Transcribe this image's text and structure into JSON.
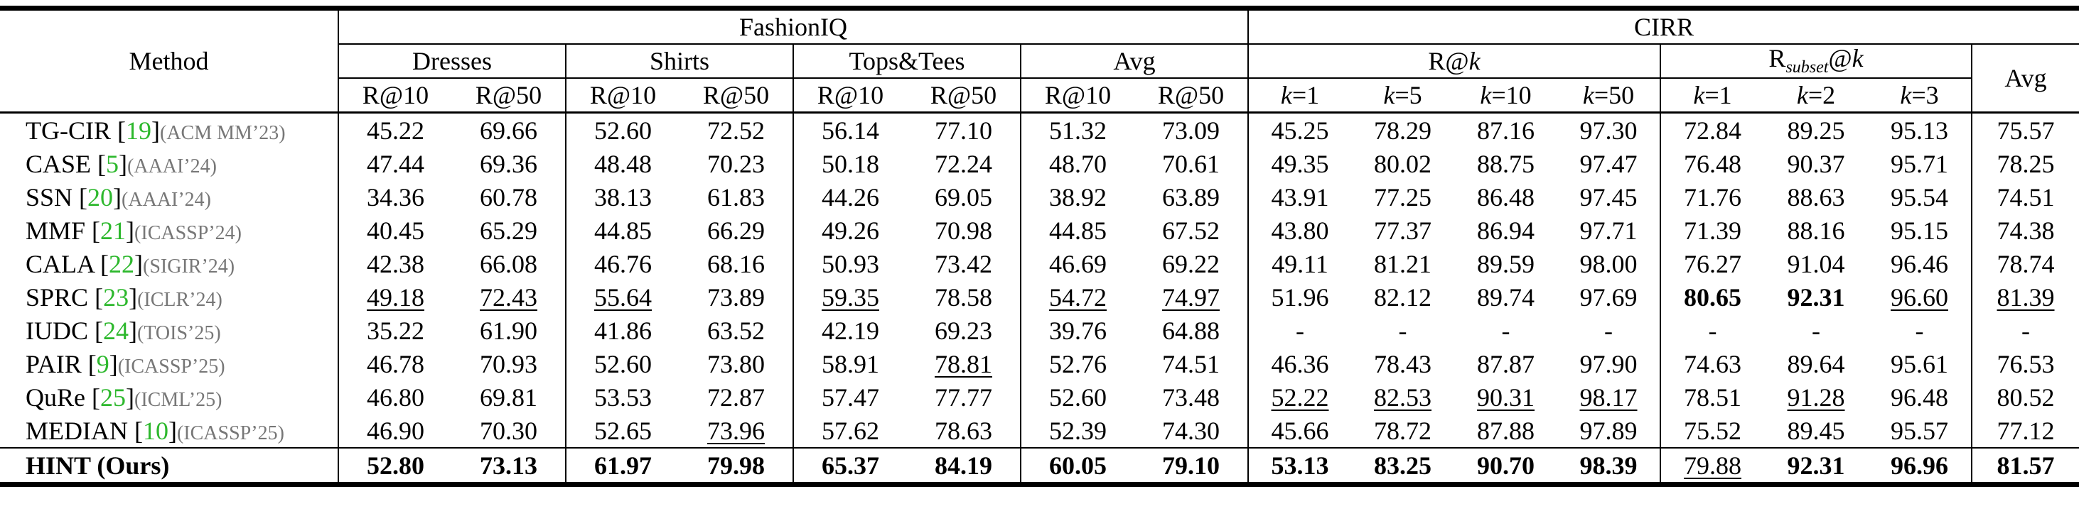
{
  "table": {
    "method_header": "Method",
    "groups": [
      {
        "name": "FashionIQ"
      },
      {
        "name": "CIRR"
      }
    ],
    "subgroups": [
      "Dresses",
      "Shirts",
      "Tops&Tees",
      "Avg",
      "R@k",
      {
        "main": "R",
        "sub": "subset",
        "tail": "@k"
      },
      "Avg"
    ],
    "metrics": [
      "R@10",
      "R@50",
      "R@10",
      "R@50",
      "R@10",
      "R@50",
      "R@10",
      "R@50",
      "k=1",
      "k=5",
      "k=10",
      "k=50",
      "k=1",
      "k=2",
      "k=3"
    ],
    "rows": [
      {
        "name": "TG-CIR",
        "ref": "[19]",
        "venue": "(ACM MM’23)",
        "cells": [
          "45.22",
          "69.66",
          "52.60",
          "72.52",
          "56.14",
          "77.10",
          "51.32",
          "73.09",
          "45.25",
          "78.29",
          "87.16",
          "97.30",
          "72.84",
          "89.25",
          "95.13",
          "75.57"
        ],
        "bold": [],
        "underline": []
      },
      {
        "name": "CASE",
        "ref": "[5]",
        "venue": "(AAAI’24)",
        "cells": [
          "47.44",
          "69.36",
          "48.48",
          "70.23",
          "50.18",
          "72.24",
          "48.70",
          "70.61",
          "49.35",
          "80.02",
          "88.75",
          "97.47",
          "76.48",
          "90.37",
          "95.71",
          "78.25"
        ],
        "bold": [],
        "underline": []
      },
      {
        "name": "SSN",
        "ref": "[20]",
        "venue": "(AAAI’24)",
        "cells": [
          "34.36",
          "60.78",
          "38.13",
          "61.83",
          "44.26",
          "69.05",
          "38.92",
          "63.89",
          "43.91",
          "77.25",
          "86.48",
          "97.45",
          "71.76",
          "88.63",
          "95.54",
          "74.51"
        ],
        "bold": [],
        "underline": []
      },
      {
        "name": "MMF",
        "ref": "[21]",
        "venue": "(ICASSP’24)",
        "cells": [
          "40.45",
          "65.29",
          "44.85",
          "66.29",
          "49.26",
          "70.98",
          "44.85",
          "67.52",
          "43.80",
          "77.37",
          "86.94",
          "97.71",
          "71.39",
          "88.16",
          "95.15",
          "74.38"
        ],
        "bold": [],
        "underline": []
      },
      {
        "name": "CALA",
        "ref": "[22]",
        "venue": "(SIGIR’24)",
        "cells": [
          "42.38",
          "66.08",
          "46.76",
          "68.16",
          "50.93",
          "73.42",
          "46.69",
          "69.22",
          "49.11",
          "81.21",
          "89.59",
          "98.00",
          "76.27",
          "91.04",
          "96.46",
          "78.74"
        ],
        "bold": [],
        "underline": []
      },
      {
        "name": "SPRC",
        "ref": "[23]",
        "venue": "(ICLR’24)",
        "cells": [
          "49.18",
          "72.43",
          "55.64",
          "73.89",
          "59.35",
          "78.58",
          "54.72",
          "74.97",
          "51.96",
          "82.12",
          "89.74",
          "97.69",
          "80.65",
          "92.31",
          "96.60",
          "81.39"
        ],
        "bold": [
          12,
          13
        ],
        "underline": [
          0,
          1,
          2,
          4,
          6,
          7,
          14,
          15
        ]
      },
      {
        "name": "IUDC",
        "ref": "[24]",
        "venue": "(TOIS’25)",
        "cells": [
          "35.22",
          "61.90",
          "41.86",
          "63.52",
          "42.19",
          "69.23",
          "39.76",
          "64.88",
          "-",
          "-",
          "-",
          "-",
          "-",
          "-",
          "-",
          "-"
        ],
        "bold": [],
        "underline": []
      },
      {
        "name": "PAIR",
        "ref": "[9]",
        "venue": "(ICASSP’25)",
        "cells": [
          "46.78",
          "70.93",
          "52.60",
          "73.80",
          "58.91",
          "78.81",
          "52.76",
          "74.51",
          "46.36",
          "78.43",
          "87.87",
          "97.90",
          "74.63",
          "89.64",
          "95.61",
          "76.53"
        ],
        "bold": [],
        "underline": [
          5
        ]
      },
      {
        "name": "QuRe",
        "ref": "[25]",
        "venue": "(ICML’25)",
        "cells": [
          "46.80",
          "69.81",
          "53.53",
          "72.87",
          "57.47",
          "77.77",
          "52.60",
          "73.48",
          "52.22",
          "82.53",
          "90.31",
          "98.17",
          "78.51",
          "91.28",
          "96.48",
          "80.52"
        ],
        "bold": [],
        "underline": [
          8,
          9,
          10,
          11,
          13
        ]
      },
      {
        "name": "MEDIAN",
        "ref": "[10]",
        "venue": "(ICASSP’25)",
        "cells": [
          "46.90",
          "70.30",
          "52.65",
          "73.96",
          "57.62",
          "78.63",
          "52.39",
          "74.30",
          "45.66",
          "78.72",
          "87.88",
          "97.89",
          "75.52",
          "89.45",
          "95.57",
          "77.12"
        ],
        "bold": [],
        "underline": [
          3
        ]
      },
      {
        "name": "HINT (Ours)",
        "cells": [
          "52.80",
          "73.13",
          "61.97",
          "79.98",
          "65.37",
          "84.19",
          "60.05",
          "79.10",
          "53.13",
          "83.25",
          "90.70",
          "98.39",
          "79.88",
          "92.31",
          "96.96",
          "81.57"
        ],
        "bold_name": true,
        "bold": [
          0,
          1,
          2,
          3,
          4,
          5,
          6,
          7,
          8,
          9,
          10,
          11,
          13,
          14,
          15
        ],
        "underline": [
          12
        ]
      }
    ]
  }
}
